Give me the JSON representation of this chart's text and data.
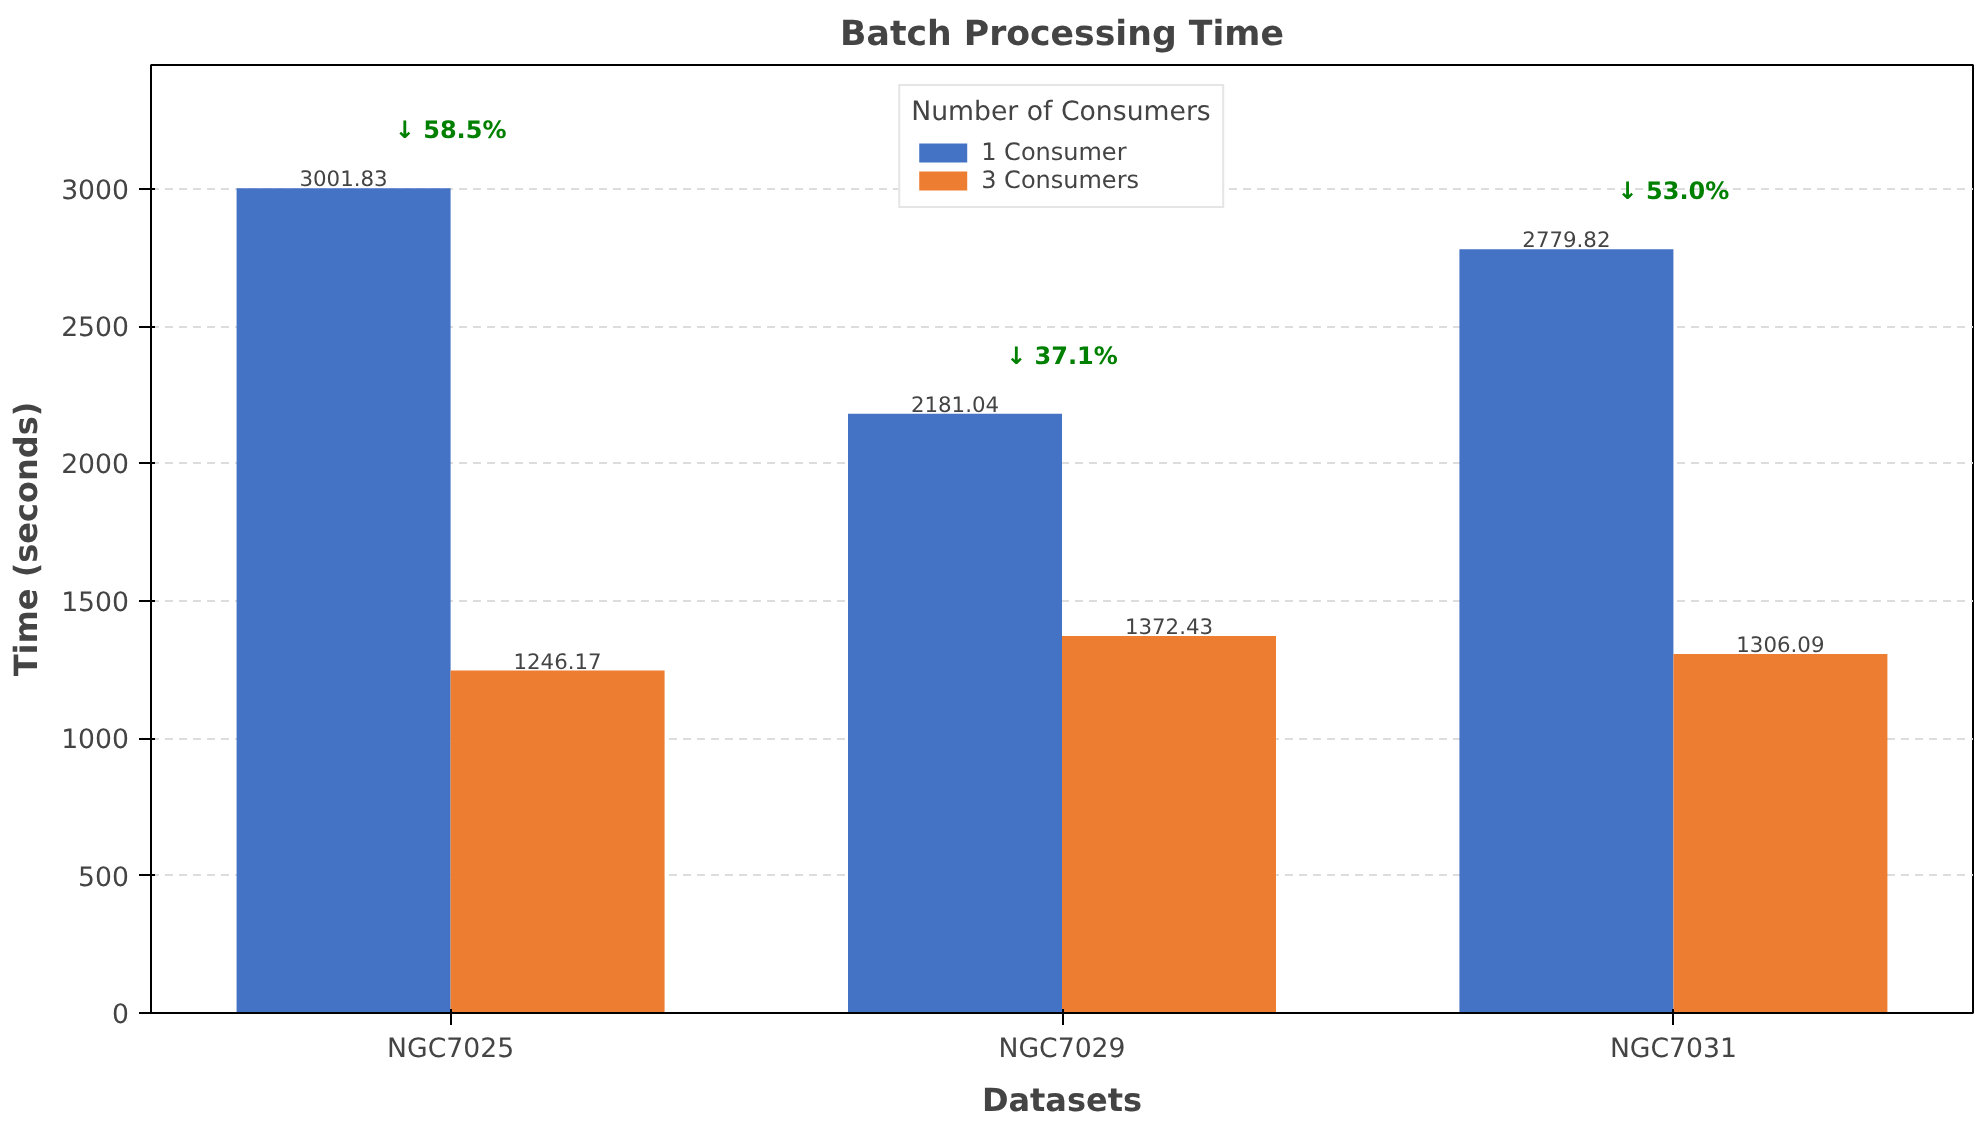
{
  "chart_data": {
    "type": "bar",
    "title": "Batch Processing Time",
    "xlabel": "Datasets",
    "ylabel": "Time (seconds)",
    "legend_title": "Number of Consumers",
    "categories": [
      "NGC7025",
      "NGC7029",
      "NGC7031"
    ],
    "series": [
      {
        "name": "1 Consumer",
        "color": "#4472c4",
        "values": [
          3001.83,
          2181.04,
          2779.82
        ]
      },
      {
        "name": "3 Consumers",
        "color": "#ed7d31",
        "values": [
          1246.17,
          1372.43,
          1306.09
        ]
      }
    ],
    "ylim": [
      0,
      3450
    ],
    "yticks": [
      0,
      500,
      1000,
      1500,
      2000,
      2500,
      3000
    ],
    "grid": "y",
    "legend": "top",
    "data_labels": true,
    "annotations": [
      "↓ 58.5%",
      "↓ 37.1%",
      "↓ 53.0%"
    ]
  }
}
